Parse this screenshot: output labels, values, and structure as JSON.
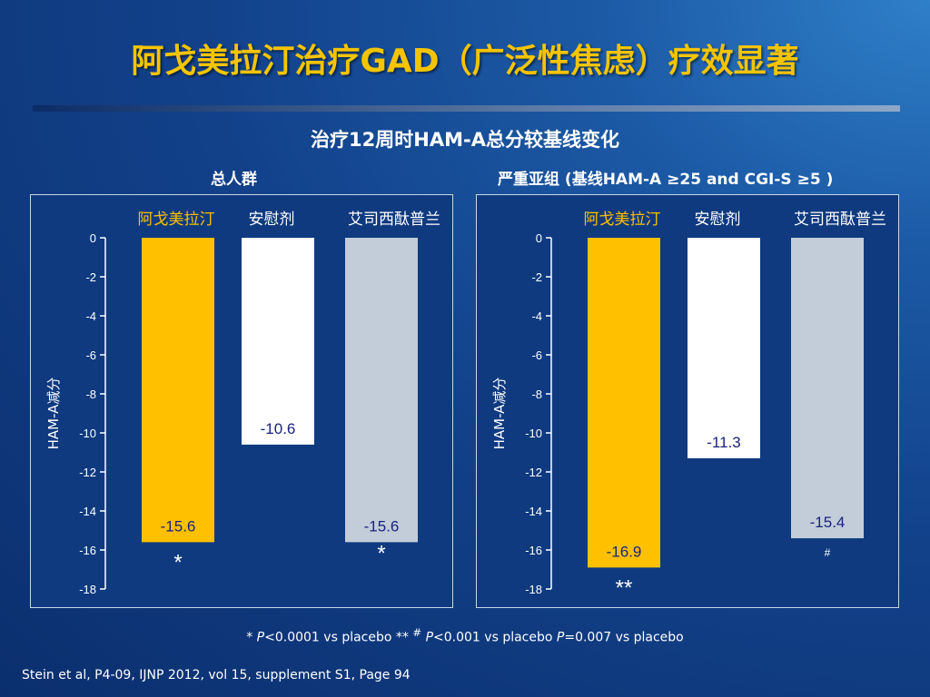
{
  "title": "阿戈美拉汀治疗GAD（广泛性焦虑）疗效显著",
  "subtitle": "治疗12周时HAM-A总分较基线变化",
  "footnote": {
    "star": "*",
    "p1": "P",
    "t1": "<0.0001 vs placebo  ** ",
    "p2": "P",
    "t2": "<0.001 vs placebo  ",
    "hash": "#",
    "p3": "P",
    "t3": "=0.007 vs placebo"
  },
  "citation": "Stein et al, P4-09, IJNP 2012, vol 15, supplement S1, Page 94",
  "colors": {
    "agomelatine": "#ffc000",
    "placebo": "#ffffff",
    "escitalopram": "#c3cdd9",
    "title": "#f5c400",
    "value_text": "#1a237e"
  },
  "chart_data": [
    {
      "type": "bar",
      "title": "总人群",
      "ylabel": "HAM-A减分",
      "ylim": [
        -18,
        0
      ],
      "yticks": [
        "0",
        "-2",
        "-4",
        "-6",
        "-8",
        "-10",
        "-12",
        "-14",
        "-16",
        "-18"
      ],
      "categories": [
        "阿戈美拉汀",
        "安慰剂",
        "艾司西酞普兰"
      ],
      "values": [
        -15.6,
        -10.6,
        -15.6
      ],
      "value_labels": [
        "-15.6",
        "-10.6",
        "-15.6"
      ],
      "significance": [
        "*",
        "",
        "*"
      ]
    },
    {
      "type": "bar",
      "title": "严重亚组 (基线HAM-A ≥25 and CGI-S ≥5 )",
      "ylabel": "HAM-A减分",
      "ylim": [
        -18,
        0
      ],
      "yticks": [
        "0",
        "-2",
        "-4",
        "-6",
        "-8",
        "-10",
        "-12",
        "-14",
        "-16",
        "-18"
      ],
      "categories": [
        "阿戈美拉汀",
        "安慰剂",
        "艾司西酞普兰"
      ],
      "values": [
        -16.9,
        -11.3,
        -15.4
      ],
      "value_labels": [
        "-16.9",
        "-11.3",
        "-15.4"
      ],
      "significance": [
        "**",
        "",
        "#"
      ]
    }
  ]
}
